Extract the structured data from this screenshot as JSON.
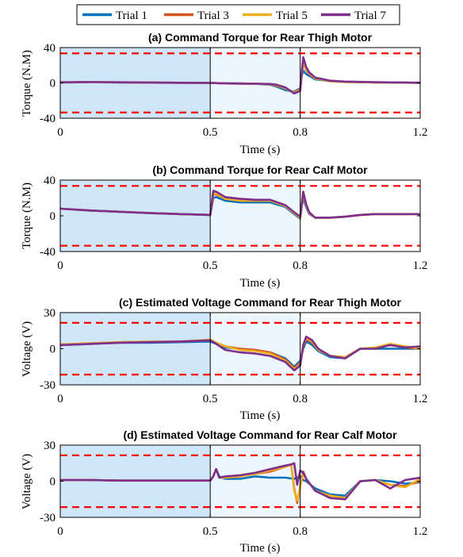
{
  "legend": {
    "placement": "top-center",
    "entries": [
      {
        "name": "Trial 1",
        "color": "#0072BD"
      },
      {
        "name": "Trial 3",
        "color": "#D95319"
      },
      {
        "name": "Trial 5",
        "color": "#EDB120"
      },
      {
        "name": "Trial 7",
        "color": "#7E2F8E"
      }
    ]
  },
  "colors": {
    "phase1_shade": "#cfe6f8",
    "phase2_shade": "#eef6fd",
    "limit_line": "#ff0000",
    "phase_divider": "#000000"
  },
  "chart_data": [
    {
      "type": "line",
      "title": "(a) Command Torque for Rear Thigh Motor",
      "xlabel": "Time (s)",
      "ylabel": "Torque (N.M)",
      "xlim": [
        0,
        1.2
      ],
      "ylim": [
        -40,
        40
      ],
      "xticks": [
        0,
        0.5,
        0.8,
        1.2
      ],
      "xtick_labels": [
        "0",
        "0.5",
        "0.8",
        "1.2"
      ],
      "yticks": [
        -40,
        0,
        40
      ],
      "ytick_labels": [
        "-40",
        "0",
        "40"
      ],
      "limits": [
        33.5,
        -33.5
      ],
      "phase_bounds": [
        0.5,
        0.8
      ],
      "grid": false,
      "series": [
        {
          "name": "Trial 1",
          "x": [
            0,
            0.1,
            0.2,
            0.3,
            0.4,
            0.5,
            0.55,
            0.6,
            0.65,
            0.7,
            0.72,
            0.75,
            0.78,
            0.8,
            0.805,
            0.81,
            0.82,
            0.83,
            0.85,
            0.9,
            0.95,
            1.0,
            1.05,
            1.1,
            1.15,
            1.2
          ],
          "y": [
            0.5,
            0.8,
            0.5,
            0.3,
            0.2,
            0,
            -0.5,
            -0.5,
            -1,
            -2,
            -4,
            -8,
            -10,
            -6,
            8,
            14,
            10,
            8,
            4,
            2,
            1,
            1,
            0.5,
            0.5,
            0.3,
            0
          ]
        },
        {
          "name": "Trial 3",
          "x": [
            0,
            0.1,
            0.2,
            0.3,
            0.4,
            0.5,
            0.55,
            0.6,
            0.65,
            0.7,
            0.72,
            0.75,
            0.78,
            0.8,
            0.805,
            0.81,
            0.82,
            0.83,
            0.85,
            0.9,
            0.95,
            1.0,
            1.05,
            1.1,
            1.15,
            1.2
          ],
          "y": [
            0.6,
            0.9,
            0.6,
            0.4,
            0.2,
            0,
            -0.6,
            -0.7,
            -0.8,
            -1.5,
            -3,
            -6,
            -11,
            -7,
            10,
            22,
            15,
            10,
            5,
            2,
            1.2,
            1,
            0.6,
            0.5,
            0.3,
            0.2
          ]
        },
        {
          "name": "Trial 5",
          "x": [
            0,
            0.1,
            0.2,
            0.3,
            0.4,
            0.5,
            0.55,
            0.6,
            0.65,
            0.7,
            0.72,
            0.75,
            0.78,
            0.8,
            0.805,
            0.81,
            0.82,
            0.83,
            0.85,
            0.9,
            0.95,
            1.0,
            1.05,
            1.1,
            1.15,
            1.2
          ],
          "y": [
            0.5,
            0.8,
            0.6,
            0.3,
            0.2,
            0,
            -0.5,
            -0.6,
            -0.7,
            -1.4,
            -2.5,
            -6,
            -11,
            -8,
            10,
            24,
            16,
            11,
            5,
            2,
            1,
            1,
            0.5,
            0.5,
            0.3,
            0.1
          ]
        },
        {
          "name": "Trial 7",
          "x": [
            0,
            0.1,
            0.2,
            0.3,
            0.4,
            0.5,
            0.55,
            0.6,
            0.65,
            0.7,
            0.72,
            0.75,
            0.78,
            0.8,
            0.805,
            0.81,
            0.82,
            0.83,
            0.85,
            0.9,
            0.95,
            1.0,
            1.05,
            1.1,
            1.15,
            1.2
          ],
          "y": [
            0.7,
            1,
            0.7,
            0.4,
            0.2,
            0,
            -0.5,
            -0.8,
            -0.9,
            -1.2,
            -2,
            -5,
            -12,
            -9,
            12,
            29,
            18,
            12,
            6,
            2.5,
            1.5,
            1.2,
            0.8,
            0.6,
            0.4,
            0.3
          ]
        }
      ]
    },
    {
      "type": "line",
      "title": "(b) Command Torque for Rear Calf Motor",
      "xlabel": "Time (s)",
      "ylabel": "Torque (N.M)",
      "xlim": [
        0,
        1.2
      ],
      "ylim": [
        -40,
        40
      ],
      "xticks": [
        0,
        0.5,
        0.8,
        1.2
      ],
      "xtick_labels": [
        "0",
        "0.5",
        "0.8",
        "1.2"
      ],
      "yticks": [
        -40,
        0,
        40
      ],
      "ytick_labels": [
        "-40",
        "0",
        "40"
      ],
      "limits": [
        33.5,
        -33.5
      ],
      "phase_bounds": [
        0.5,
        0.8
      ],
      "grid": false,
      "series": [
        {
          "name": "Trial 1",
          "x": [
            0,
            0.1,
            0.2,
            0.3,
            0.4,
            0.5,
            0.505,
            0.51,
            0.52,
            0.55,
            0.6,
            0.65,
            0.7,
            0.75,
            0.78,
            0.8,
            0.805,
            0.81,
            0.82,
            0.83,
            0.85,
            0.9,
            0.95,
            1.0,
            1.05,
            1.1,
            1.15,
            1.2
          ],
          "y": [
            8,
            6,
            4.5,
            3,
            2,
            1,
            10,
            20,
            21,
            17,
            15,
            15,
            15,
            10,
            2,
            -3,
            10,
            20,
            10,
            2,
            -2,
            -2,
            -1,
            1,
            2,
            2,
            2,
            2
          ]
        },
        {
          "name": "Trial 3",
          "x": [
            0,
            0.1,
            0.2,
            0.3,
            0.4,
            0.5,
            0.505,
            0.51,
            0.52,
            0.55,
            0.6,
            0.65,
            0.7,
            0.75,
            0.78,
            0.8,
            0.805,
            0.81,
            0.82,
            0.83,
            0.85,
            0.9,
            0.95,
            1.0,
            1.05,
            1.1,
            1.15,
            1.2
          ],
          "y": [
            8,
            6,
            4.5,
            3,
            2,
            1,
            12,
            24,
            24,
            19,
            17,
            17,
            17,
            11,
            3,
            -2,
            12,
            24,
            12,
            3,
            -2,
            -2,
            -1,
            1,
            2,
            2,
            2,
            2
          ]
        },
        {
          "name": "Trial 5",
          "x": [
            0,
            0.1,
            0.2,
            0.3,
            0.4,
            0.5,
            0.505,
            0.51,
            0.52,
            0.55,
            0.6,
            0.65,
            0.7,
            0.75,
            0.78,
            0.8,
            0.805,
            0.81,
            0.82,
            0.83,
            0.85,
            0.9,
            0.95,
            1.0,
            1.05,
            1.1,
            1.15,
            1.2
          ],
          "y": [
            8,
            6,
            4.5,
            3,
            2,
            1,
            12,
            25,
            25,
            19,
            17,
            17,
            17,
            11,
            3,
            -2,
            12,
            25,
            12,
            3,
            -2,
            -2,
            -1,
            1,
            2,
            2,
            2,
            2
          ]
        },
        {
          "name": "Trial 7",
          "x": [
            0,
            0.1,
            0.2,
            0.3,
            0.4,
            0.5,
            0.505,
            0.51,
            0.52,
            0.55,
            0.6,
            0.65,
            0.7,
            0.75,
            0.78,
            0.8,
            0.805,
            0.81,
            0.82,
            0.83,
            0.85,
            0.9,
            0.95,
            1.0,
            1.05,
            1.1,
            1.15,
            1.2
          ],
          "y": [
            8,
            6,
            4.5,
            3,
            2,
            1,
            14,
            28,
            27,
            21,
            19,
            18,
            18,
            12,
            4,
            -1,
            14,
            27,
            13,
            4,
            -2,
            -2,
            -1,
            1,
            2,
            2,
            2,
            2
          ]
        }
      ]
    },
    {
      "type": "line",
      "title": "(c) Estimated Voltage Command for Rear Thigh Motor",
      "xlabel": "Time (s)",
      "ylabel": "Voltage (V)",
      "xlim": [
        0,
        1.2
      ],
      "ylim": [
        -30,
        30
      ],
      "xticks": [
        0,
        0.5,
        0.8,
        1.2
      ],
      "xtick_labels": [
        "0",
        "0.5",
        "0.8",
        "1.2"
      ],
      "yticks": [
        -30,
        0,
        30
      ],
      "ytick_labels": [
        "-30",
        "0",
        "30"
      ],
      "limits": [
        21.5,
        -21.5
      ],
      "phase_bounds": [
        0.5,
        0.8
      ],
      "grid": false,
      "series": [
        {
          "name": "Trial 1",
          "x": [
            0,
            0.1,
            0.2,
            0.3,
            0.4,
            0.5,
            0.52,
            0.55,
            0.6,
            0.65,
            0.7,
            0.75,
            0.78,
            0.8,
            0.81,
            0.82,
            0.84,
            0.86,
            0.9,
            0.95,
            1.0,
            1.05,
            1.1,
            1.15,
            1.2
          ],
          "y": [
            3,
            4,
            5,
            5,
            5.5,
            6,
            4,
            1,
            0,
            -1,
            -3,
            -8,
            -15,
            -10,
            0,
            6,
            3,
            -2,
            -7,
            -8,
            0,
            0,
            0,
            0,
            0
          ]
        },
        {
          "name": "Trial 3",
          "x": [
            0,
            0.1,
            0.2,
            0.3,
            0.4,
            0.5,
            0.52,
            0.55,
            0.6,
            0.65,
            0.7,
            0.75,
            0.78,
            0.8,
            0.81,
            0.82,
            0.84,
            0.86,
            0.9,
            0.95,
            1.0,
            1.05,
            1.1,
            1.15,
            1.2
          ],
          "y": [
            3.5,
            4.5,
            5.5,
            5.5,
            6,
            7,
            5,
            2,
            0,
            -1,
            -3,
            -9,
            -16,
            -12,
            2,
            8,
            5,
            -1,
            -6,
            -7,
            0,
            1,
            3,
            1,
            0
          ]
        },
        {
          "name": "Trial 5",
          "x": [
            0,
            0.1,
            0.2,
            0.3,
            0.4,
            0.5,
            0.52,
            0.55,
            0.6,
            0.65,
            0.7,
            0.75,
            0.78,
            0.8,
            0.81,
            0.82,
            0.84,
            0.86,
            0.9,
            0.95,
            1.0,
            1.05,
            1.1,
            1.15,
            1.2
          ],
          "y": [
            3.5,
            4.5,
            5.5,
            6,
            6,
            7.5,
            5,
            2,
            -1,
            -2,
            -4,
            -10,
            -17,
            -13,
            3,
            9,
            6,
            -1,
            -6,
            -7,
            0,
            1,
            4,
            2,
            0
          ]
        },
        {
          "name": "Trial 7",
          "x": [
            0,
            0.1,
            0.2,
            0.3,
            0.4,
            0.5,
            0.52,
            0.55,
            0.6,
            0.65,
            0.7,
            0.75,
            0.78,
            0.8,
            0.81,
            0.82,
            0.84,
            0.86,
            0.9,
            0.95,
            1.0,
            1.05,
            1.1,
            1.15,
            1.2
          ],
          "y": [
            3,
            4,
            5,
            5.5,
            6,
            7,
            4,
            -1,
            -3,
            -4,
            -6,
            -11,
            -18,
            -14,
            3,
            10,
            7,
            0,
            -6,
            -8,
            0,
            0,
            3,
            1,
            2
          ]
        }
      ]
    },
    {
      "type": "line",
      "title": "(d) Estimated Voltage Command for Rear Calf Motor",
      "xlabel": "Time (s)",
      "ylabel": "Voltage (V)",
      "xlim": [
        0,
        1.2
      ],
      "ylim": [
        -30,
        30
      ],
      "xticks": [
        0,
        0.5,
        0.8,
        1.2
      ],
      "xtick_labels": [
        "0",
        "0.5",
        "0.8",
        "1.2"
      ],
      "yticks": [
        -30,
        0,
        30
      ],
      "ytick_labels": [
        "-30",
        "0",
        "30"
      ],
      "limits": [
        21.5,
        -21.5
      ],
      "phase_bounds": [
        0.5,
        0.8
      ],
      "grid": false,
      "series": [
        {
          "name": "Trial 1",
          "x": [
            0,
            0.1,
            0.2,
            0.3,
            0.4,
            0.5,
            0.51,
            0.52,
            0.53,
            0.55,
            0.6,
            0.65,
            0.7,
            0.75,
            0.78,
            0.79,
            0.8,
            0.81,
            0.82,
            0.85,
            0.9,
            0.95,
            1.0,
            1.05,
            1.1,
            1.15,
            1.2
          ],
          "y": [
            1,
            1,
            0.5,
            0.5,
            0.5,
            0.5,
            4,
            10,
            4,
            2,
            2,
            4,
            3,
            3,
            2,
            3,
            4,
            1,
            0,
            -6,
            -11,
            -12,
            0,
            1,
            0,
            -2,
            -1
          ]
        },
        {
          "name": "Trial 3",
          "x": [
            0,
            0.1,
            0.2,
            0.3,
            0.4,
            0.5,
            0.51,
            0.52,
            0.53,
            0.55,
            0.6,
            0.65,
            0.7,
            0.75,
            0.77,
            0.78,
            0.79,
            0.8,
            0.81,
            0.82,
            0.85,
            0.9,
            0.95,
            1.0,
            1.05,
            1.1,
            1.15,
            1.2
          ],
          "y": [
            1,
            1,
            0.5,
            0.5,
            0.5,
            0.5,
            4,
            10,
            3,
            3,
            4,
            6,
            8,
            12,
            14,
            -6,
            -18,
            -4,
            8,
            2,
            -8,
            -12,
            -14,
            0,
            1,
            -3,
            -4,
            0
          ]
        },
        {
          "name": "Trial 5",
          "x": [
            0,
            0.1,
            0.2,
            0.3,
            0.4,
            0.5,
            0.51,
            0.52,
            0.53,
            0.55,
            0.6,
            0.65,
            0.7,
            0.75,
            0.77,
            0.78,
            0.79,
            0.8,
            0.81,
            0.82,
            0.85,
            0.9,
            0.95,
            1.0,
            1.05,
            1.1,
            1.15,
            1.2
          ],
          "y": [
            1,
            1,
            0.5,
            0.5,
            0.5,
            0.5,
            4,
            10,
            3,
            3,
            4,
            6,
            9,
            12,
            14,
            -8,
            -16,
            -4,
            6,
            2,
            -8,
            -12,
            -14,
            0,
            1,
            -3,
            -5,
            2
          ]
        },
        {
          "name": "Trial 7",
          "x": [
            0,
            0.1,
            0.2,
            0.3,
            0.4,
            0.5,
            0.51,
            0.52,
            0.53,
            0.55,
            0.6,
            0.65,
            0.7,
            0.75,
            0.77,
            0.78,
            0.79,
            0.8,
            0.81,
            0.82,
            0.85,
            0.9,
            0.95,
            1.0,
            1.05,
            1.1,
            1.15,
            1.2
          ],
          "y": [
            1,
            1,
            0.5,
            0.5,
            0.5,
            0.5,
            4,
            10,
            3,
            4,
            5,
            7,
            10,
            13,
            14,
            15,
            -3,
            9,
            7,
            2,
            -8,
            -14,
            -15,
            0,
            1,
            -6,
            1,
            3
          ]
        }
      ]
    }
  ]
}
